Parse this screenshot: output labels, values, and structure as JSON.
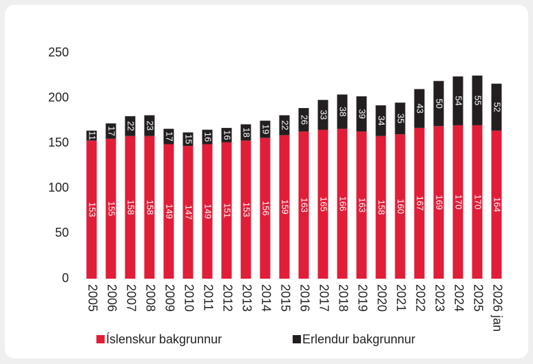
{
  "chart_data": {
    "type": "stacked_bar",
    "categories": [
      "2005",
      "2006",
      "2007",
      "2008",
      "2009",
      "2010",
      "2011",
      "2012",
      "2013",
      "2014",
      "2015",
      "2016",
      "2017",
      "2018",
      "2019",
      "2020",
      "2021",
      "2022",
      "2023",
      "2024",
      "2025",
      "2026 jan"
    ],
    "series": [
      {
        "name": "Íslenskur bakgrunnur",
        "color": "#e11d38",
        "values": [
          153,
          155,
          158,
          158,
          149,
          147,
          149,
          151,
          153,
          156,
          159,
          163,
          165,
          166,
          163,
          158,
          160,
          167,
          169,
          170,
          170,
          164
        ]
      },
      {
        "name": "Erlendur bakgrunnur",
        "color": "#231f20",
        "values": [
          11,
          17,
          22,
          23,
          17,
          15,
          16,
          16,
          18,
          19,
          22,
          26,
          33,
          38,
          39,
          34,
          35,
          43,
          50,
          54,
          55,
          52
        ]
      }
    ],
    "ylim": [
      0,
      250
    ],
    "yticks": [
      0,
      50,
      100,
      150,
      200,
      250
    ],
    "grid": false,
    "legend": "bottom"
  }
}
